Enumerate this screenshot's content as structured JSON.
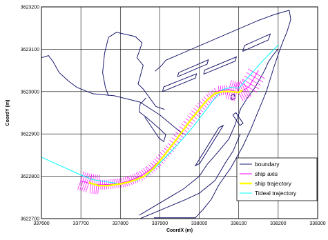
{
  "chart_data": {
    "type": "line",
    "title": "",
    "xlabel": "CoordX (m)",
    "ylabel": "CoordY (m)",
    "xlim": [
      337600,
      338300
    ],
    "ylim": [
      3622700,
      3623200
    ],
    "xticks": [
      337600,
      337700,
      337800,
      337900,
      338000,
      338100,
      338200,
      338300
    ],
    "yticks": [
      3622700,
      3622800,
      3622900,
      3623000,
      3623100,
      3623200
    ],
    "grid": true,
    "legend": {
      "position": "bottom-right",
      "entries": [
        "boundary",
        "ship axis",
        "ship trajectory",
        "Tideal trajectory"
      ]
    },
    "series": [
      {
        "name": "boundary",
        "color": "#1a1a6e",
        "polylines": [
          [
            [
              337600,
              3623080
            ],
            [
              337618,
              3623085
            ],
            [
              337630,
              3623070
            ],
            [
              337645,
              3623045
            ],
            [
              337668,
              3623025
            ],
            [
              337690,
              3623010
            ],
            [
              337730,
              3622995
            ],
            [
              337785,
              3622990
            ],
            [
              337850,
              3622975
            ],
            [
              337900,
              3622945
            ],
            [
              337958,
              3622900
            ]
          ],
          [
            [
              337770,
              3623128
            ],
            [
              337790,
              3623140
            ],
            [
              337838,
              3623130
            ],
            [
              337855,
              3623115
            ],
            [
              337848,
              3623095
            ],
            [
              337842,
              3623080
            ],
            [
              337858,
              3623062
            ],
            [
              337845,
              3623018
            ],
            [
              337858,
              3623006
            ],
            [
              337890,
              3622965
            ],
            [
              337912,
              3622958
            ]
          ],
          [
            [
              337770,
              3623128
            ],
            [
              337760,
              3623090
            ],
            [
              337755,
              3623045
            ],
            [
              337762,
              3623010
            ],
            [
              337770,
              3622990
            ]
          ],
          [
            [
              337865,
              3622985
            ],
            [
              337850,
              3622970
            ],
            [
              337848,
              3622952
            ],
            [
              337865,
              3622940
            ],
            [
              337902,
              3622910
            ],
            [
              337915,
              3622898
            ],
            [
              337910,
              3622882
            ],
            [
              337898,
              3622890
            ],
            [
              337862,
              3622940
            ]
          ],
          [
            [
              337888,
              3623048
            ],
            [
              337905,
              3623062
            ],
            [
              337915,
              3623074
            ],
            [
              338150,
              3623168
            ],
            [
              338190,
              3623182
            ],
            [
              338228,
              3623192
            ],
            [
              338232,
              3623170
            ],
            [
              338222,
              3623140
            ],
            [
              338212,
              3623118
            ],
            [
              338200,
              3623088
            ],
            [
              338190,
              3623060
            ],
            [
              338180,
              3623030
            ],
            [
              338170,
              3623000
            ],
            [
              338150,
              3622955
            ],
            [
              338130,
              3622910
            ],
            [
              338110,
              3622870
            ],
            [
              338080,
              3622820
            ],
            [
              338050,
              3622780
            ],
            [
              338030,
              3622745
            ],
            [
              338010,
              3622722
            ],
            [
              337990,
              3622702
            ],
            [
              337885,
              3622702
            ]
          ],
          [
            [
              337848,
              3622708
            ],
            [
              337960,
              3622770
            ],
            [
              338000,
              3622800
            ],
            [
              338020,
              3622828
            ],
            [
              338050,
              3622860
            ],
            [
              338075,
              3622888
            ],
            [
              338090,
              3622920
            ],
            [
              338105,
              3622960
            ],
            [
              338122,
              3622985
            ],
            [
              338140,
              3623008
            ],
            [
              338160,
              3623040
            ],
            [
              338168,
              3623055
            ],
            [
              338175,
              3623070
            ],
            [
              338186,
              3623085
            ],
            [
              338199,
              3623100
            ]
          ],
          [
            [
              337850,
              3622700
            ],
            [
              337965,
              3622745
            ],
            [
              338000,
              3622760
            ],
            [
              338040,
              3622790
            ],
            [
              338065,
              3622830
            ],
            [
              338086,
              3622860
            ],
            [
              338101,
              3622894
            ],
            [
              338104,
              3622900
            ]
          ],
          [
            [
              337945,
              3623035
            ],
            [
              337948,
              3623045
            ],
            [
              338023,
              3623075
            ],
            [
              338020,
              3623065
            ],
            [
              337945,
              3623035
            ]
          ],
          [
            [
              337907,
              3623000
            ],
            [
              337910,
              3623011
            ],
            [
              337993,
              3623042
            ],
            [
              337990,
              3623032
            ],
            [
              337907,
              3623000
            ]
          ],
          [
            [
              338011,
              3623041
            ],
            [
              338014,
              3623051
            ],
            [
              338094,
              3623082
            ],
            [
              338091,
              3623072
            ],
            [
              338011,
              3623041
            ]
          ],
          [
            [
              338110,
              3623095
            ],
            [
              338115,
              3623109
            ],
            [
              338180,
              3623136
            ],
            [
              338175,
              3623122
            ],
            [
              338110,
              3623095
            ]
          ],
          [
            [
              338050,
              3622915
            ],
            [
              338061,
              3622920
            ],
            [
              338001,
              3622830
            ],
            [
              337990,
              3622825
            ],
            [
              338050,
              3622915
            ]
          ],
          [
            [
              338085,
              3622945
            ],
            [
              338093,
              3622950
            ],
            [
              338111,
              3622925
            ],
            [
              338103,
              3622920
            ],
            [
              338085,
              3622945
            ]
          ],
          [
            [
              338083,
              3622980
            ],
            [
              338080,
              3622990
            ],
            [
              338088,
              3622995
            ],
            [
              338091,
              3622985
            ],
            [
              338083,
              3622980
            ]
          ]
        ]
      },
      {
        "name": "ship axis",
        "color": "#ff00ff",
        "x": [
          337700,
          337725,
          337750,
          337775,
          337800,
          337825,
          337850,
          337875,
          337900,
          337925,
          337950,
          337975,
          338000,
          338025,
          338050,
          338075,
          338100,
          338125,
          338150
        ],
        "y": [
          3622790,
          3622782,
          3622780,
          3622781,
          3622784,
          3622790,
          3622800,
          3622815,
          3622838,
          3622865,
          3622898,
          3622930,
          3622960,
          3622985,
          3623002,
          3623005,
          3622998,
          3623010,
          3623050
        ]
      },
      {
        "name": "ship trajectory",
        "color": "#ffff00",
        "x": [
          337720,
          337745,
          337770,
          337800,
          337820,
          337840,
          337860,
          337880,
          337900,
          337920,
          337940,
          337960,
          337980,
          338000,
          338020,
          338040,
          338060,
          338080,
          338100,
          338110
        ],
        "y": [
          3622785,
          3622778,
          3622778,
          3622782,
          3622786,
          3622792,
          3622800,
          3622815,
          3622836,
          3622860,
          3622884,
          3622910,
          3622935,
          3622958,
          3622980,
          3622996,
          3623000,
          3623000,
          3622998,
          3623004
        ]
      },
      {
        "name": "Tideal trajectory",
        "color": "#00ffff",
        "x": [
          337600,
          337700,
          337730,
          337800,
          337840,
          337870,
          337890,
          337920,
          337950,
          337980,
          338000,
          338020,
          338040,
          338060,
          338080,
          338100,
          338130,
          338160,
          338200
        ],
        "y": [
          3622845,
          3622803,
          3622792,
          3622782,
          3622790,
          3622804,
          3622822,
          3622850,
          3622880,
          3622912,
          3622936,
          3622960,
          3622985,
          3623005,
          3623010,
          3623008,
          3623040,
          3623072,
          3623110
        ]
      }
    ]
  }
}
